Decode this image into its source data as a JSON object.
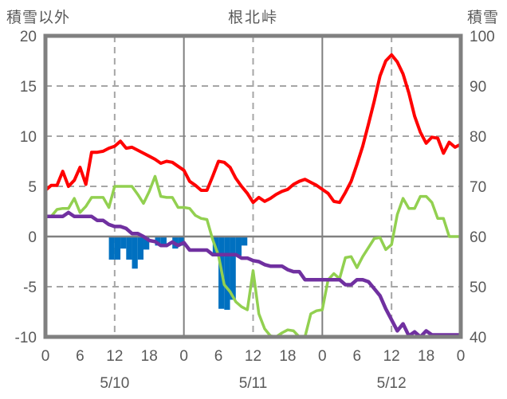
{
  "header": {
    "left_axis_title": "積雪以外",
    "chart_title": "根北峠",
    "right_axis_title": "積雪"
  },
  "colors": {
    "red_line": "#ff0000",
    "green_line": "#92d050",
    "purple_line": "#7030a0",
    "blue_bars": "#0070c0",
    "grid_dashed": "#a6a6a6",
    "axis_solid": "#808080",
    "label_text": "#595959",
    "background": "#ffffff"
  },
  "chart_data": {
    "type": "line",
    "title": "根北峠",
    "x_unit": "hours over 3 days (hourly data)",
    "x_range": [
      0,
      72
    ],
    "left_axis": {
      "title": "積雪以外",
      "range": [
        -10,
        20
      ],
      "tick_values": [
        20,
        15,
        10,
        5,
        0,
        -5,
        -10
      ],
      "tick_labels": [
        "20",
        "15",
        "10",
        "5",
        "0",
        "-5",
        "-10"
      ]
    },
    "right_axis": {
      "title": "積雪",
      "range": [
        40,
        100
      ],
      "tick_values": [
        100,
        90,
        80,
        70,
        60,
        50,
        40
      ],
      "tick_labels": [
        "100",
        "90",
        "80",
        "70",
        "60",
        "50",
        "40"
      ]
    },
    "x_axis": {
      "tick_hours": [
        0,
        6,
        12,
        18,
        24,
        30,
        36,
        42,
        48,
        54,
        60,
        66,
        72
      ],
      "tick_labels": [
        "0",
        "6",
        "12",
        "18",
        "0",
        "6",
        "12",
        "18",
        "0",
        "6",
        "12",
        "18",
        "0"
      ],
      "date_labels": [
        {
          "label": "5/10",
          "center_hour": 12
        },
        {
          "label": "5/11",
          "center_hour": 36
        },
        {
          "label": "5/12",
          "center_hour": 60
        }
      ]
    },
    "grid": {
      "horizontal_dashed_at": [
        15,
        10,
        5,
        -5
      ],
      "horizontal_solid_at": [
        0
      ],
      "vertical_dashed_at_hours": [
        12,
        36,
        60
      ],
      "vertical_solid_at_hours": [
        24,
        48
      ],
      "legend": "none"
    },
    "series": [
      {
        "name": "green_line",
        "axis": "left",
        "color": "#92d050",
        "width": 3.5,
        "values": [
          2.0,
          2.0,
          2.7,
          2.8,
          2.8,
          3.8,
          2.4,
          3.0,
          3.9,
          3.9,
          3.9,
          2.9,
          5.0,
          5.0,
          5.0,
          5.0,
          4.2,
          3.3,
          4.5,
          6.0,
          4.0,
          3.9,
          3.9,
          2.9,
          2.9,
          2.8,
          2.1,
          1.8,
          1.7,
          -0.3,
          -1.9,
          -4.8,
          -5.5,
          -6.5,
          -7.0,
          -7.3,
          -3.4,
          -7.7,
          -9.2,
          -9.9,
          -10.0,
          -9.6,
          -9.3,
          -9.4,
          -10.0,
          -10.0,
          -7.7,
          -7.4,
          -7.3,
          -4.3,
          -3.7,
          -4.2,
          -2.1,
          -2.0,
          -3.1,
          -2.0,
          -1.1,
          -0.2,
          -0.1,
          -1.3,
          -0.8,
          2.2,
          3.8,
          2.8,
          2.8,
          4.0,
          4.0,
          3.4,
          1.8,
          1.8,
          0.0,
          0.0,
          0.0
        ]
      },
      {
        "name": "purple_line",
        "axis": "left (equals right-axis snow depth: right = 40 + (v+10)*2)",
        "color": "#7030a0",
        "width": 4.5,
        "values": [
          2.0,
          2.0,
          2.0,
          2.0,
          2.4,
          2.0,
          2.0,
          2.0,
          2.0,
          1.6,
          1.6,
          1.2,
          1.0,
          1.0,
          0.8,
          0.3,
          0.3,
          0.0,
          -0.4,
          -0.5,
          -0.9,
          -0.9,
          -0.55,
          -0.9,
          -0.6,
          -1.35,
          -1.35,
          -1.35,
          -1.35,
          -1.8,
          -1.8,
          -1.8,
          -1.8,
          -1.8,
          -2.15,
          -2.15,
          -2.4,
          -2.5,
          -2.8,
          -2.95,
          -2.95,
          -2.95,
          -3.3,
          -3.5,
          -3.5,
          -4.3,
          -4.3,
          -4.3,
          -4.3,
          -4.3,
          -4.3,
          -4.3,
          -4.8,
          -4.8,
          -4.3,
          -4.3,
          -4.5,
          -5.2,
          -5.9,
          -7.2,
          -8.3,
          -9.4,
          -8.7,
          -9.9,
          -9.5,
          -10.0,
          -9.4,
          -9.8,
          -9.8,
          -9.8,
          -9.8,
          -9.8,
          -9.8
        ]
      },
      {
        "name": "red_line",
        "axis": "left",
        "color": "#ff0000",
        "width": 4,
        "values": [
          4.6,
          5.1,
          5.1,
          6.5,
          5.0,
          5.6,
          6.9,
          5.2,
          8.4,
          8.4,
          8.5,
          8.8,
          9.0,
          9.5,
          8.8,
          8.9,
          8.6,
          8.3,
          8.0,
          7.7,
          7.3,
          7.5,
          7.4,
          7.0,
          6.6,
          5.5,
          5.1,
          4.6,
          4.6,
          6.0,
          7.5,
          7.4,
          6.9,
          5.8,
          5.0,
          4.3,
          3.4,
          3.9,
          3.5,
          3.8,
          4.2,
          4.5,
          4.7,
          5.2,
          5.5,
          5.7,
          5.4,
          5.1,
          4.7,
          4.3,
          3.5,
          3.4,
          4.4,
          5.5,
          7.2,
          9.0,
          11.2,
          13.5,
          16.0,
          17.5,
          18.1,
          17.4,
          16.2,
          14.3,
          12.0,
          10.4,
          9.3,
          9.9,
          9.8,
          8.3,
          9.4,
          8.9,
          9.2
        ]
      }
    ],
    "bars": {
      "name": "blue_bars",
      "axis": "left",
      "color": "#0070c0",
      "bar_width_hours": 1,
      "points": [
        [
          11,
          -2.3
        ],
        [
          12,
          -2.3
        ],
        [
          13,
          -1.2
        ],
        [
          14,
          -2.3
        ],
        [
          15,
          -3.2
        ],
        [
          16,
          -2.3
        ],
        [
          17,
          -1.3
        ],
        [
          19,
          -0.9
        ],
        [
          20,
          -0.9
        ],
        [
          22,
          -1.2
        ],
        [
          23,
          -0.9
        ],
        [
          29,
          -1.9
        ],
        [
          30,
          -7.2
        ],
        [
          31,
          -7.3
        ],
        [
          32,
          -6.3
        ],
        [
          33,
          -1.9
        ],
        [
          34,
          -0.9
        ]
      ]
    }
  }
}
